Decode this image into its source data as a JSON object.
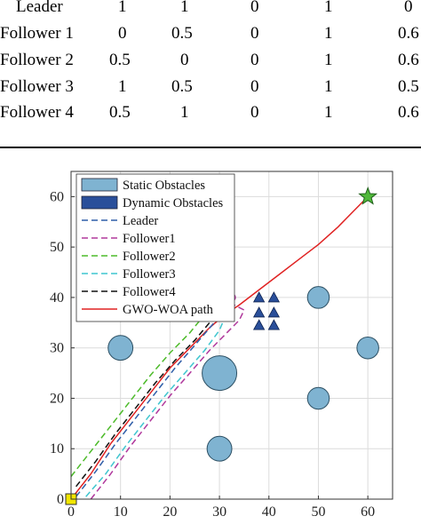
{
  "table": {
    "rows": [
      {
        "name": "Leader",
        "cells": [
          "1",
          "1",
          "0",
          "1",
          "0"
        ]
      },
      {
        "name": "Follower 1",
        "cells": [
          "0",
          "0.5",
          "0",
          "1",
          "0.6"
        ]
      },
      {
        "name": "Follower 2",
        "cells": [
          "0.5",
          "0",
          "0",
          "1",
          "0.6"
        ]
      },
      {
        "name": "Follower 3",
        "cells": [
          "1",
          "0.5",
          "0",
          "1",
          "0.5"
        ]
      },
      {
        "name": "Follower 4",
        "cells": [
          "0.5",
          "1",
          "0",
          "1",
          "0.6"
        ]
      }
    ]
  },
  "chart_data": {
    "type": "line",
    "xlim": [
      0,
      65
    ],
    "ylim": [
      0,
      65
    ],
    "xticks": [
      0,
      10,
      20,
      30,
      40,
      50,
      60
    ],
    "yticks": [
      0,
      10,
      20,
      30,
      40,
      50,
      60
    ],
    "grid": true,
    "legend_placement": "top-left",
    "legend": [
      {
        "label": "Static Obstacles",
        "kind": "patch",
        "color": "#7fb3d1"
      },
      {
        "label": "Dynamic Obstacles",
        "kind": "patch",
        "color": "#2a4f9a"
      },
      {
        "label": "Leader",
        "kind": "dash",
        "color": "#2f5ea8"
      },
      {
        "label": "Follower1",
        "kind": "dash",
        "color": "#b0389c"
      },
      {
        "label": "Follower2",
        "kind": "dash",
        "color": "#4dbb2a"
      },
      {
        "label": "Follower3",
        "kind": "dash",
        "color": "#3fc6cf"
      },
      {
        "label": "Follower4",
        "kind": "dash",
        "color": "#111111"
      },
      {
        "label": "GWO-WOA path",
        "kind": "solid",
        "color": "#e02222"
      }
    ],
    "static_obstacles": [
      {
        "cx": 10,
        "cy": 50,
        "r": 2.5
      },
      {
        "cx": 10,
        "cy": 30,
        "r": 2.5
      },
      {
        "cx": 30,
        "cy": 25,
        "r": 3.5
      },
      {
        "cx": 30,
        "cy": 10,
        "r": 2.5
      },
      {
        "cx": 50,
        "cy": 40,
        "r": 2.2
      },
      {
        "cx": 50,
        "cy": 20,
        "r": 2.2
      },
      {
        "cx": 60,
        "cy": 30,
        "r": 2.2
      }
    ],
    "dynamic_obstacles": [
      {
        "x": 38,
        "y": 40
      },
      {
        "x": 41,
        "y": 40
      },
      {
        "x": 38,
        "y": 37
      },
      {
        "x": 41,
        "y": 37
      },
      {
        "x": 38,
        "y": 34.5
      },
      {
        "x": 41,
        "y": 34.5
      }
    ],
    "start": {
      "x": 0,
      "y": 0
    },
    "goal": {
      "x": 60,
      "y": 60
    },
    "series": [
      {
        "name": "GWO-WOA path",
        "style": "solid",
        "color": "#e02222",
        "points": [
          [
            0,
            0
          ],
          [
            4,
            5
          ],
          [
            8,
            11
          ],
          [
            12,
            16
          ],
          [
            16,
            21
          ],
          [
            20,
            26
          ],
          [
            24,
            30
          ],
          [
            28,
            34
          ],
          [
            31,
            36.5
          ],
          [
            34,
            38.5
          ],
          [
            38,
            41.5
          ],
          [
            42,
            44.5
          ],
          [
            46,
            47.5
          ],
          [
            50,
            50.5
          ],
          [
            54,
            54
          ],
          [
            57,
            57
          ],
          [
            60,
            60
          ]
        ]
      },
      {
        "name": "Leader",
        "style": "dash",
        "color": "#2f5ea8",
        "points": [
          [
            1,
            0.5
          ],
          [
            5,
            5.5
          ],
          [
            9,
            11
          ],
          [
            13,
            16
          ],
          [
            17,
            21
          ],
          [
            21,
            26
          ],
          [
            25,
            30.5
          ],
          [
            28.5,
            34.5
          ],
          [
            30.5,
            37
          ]
        ]
      },
      {
        "name": "Follower1",
        "style": "dash",
        "color": "#b0389c",
        "points": [
          [
            4,
            0
          ],
          [
            8,
            5
          ],
          [
            12,
            10.5
          ],
          [
            16,
            15.5
          ],
          [
            20,
            20.5
          ],
          [
            24,
            25
          ],
          [
            28,
            29.5
          ],
          [
            31.5,
            33
          ],
          [
            34,
            35.5
          ],
          [
            35,
            37.5
          ],
          [
            33,
            38.5
          ],
          [
            32,
            38.5
          ]
        ]
      },
      {
        "name": "Follower2",
        "style": "dash",
        "color": "#4dbb2a",
        "points": [
          [
            0,
            4.5
          ],
          [
            4,
            9.5
          ],
          [
            8,
            14.5
          ],
          [
            12,
            19.5
          ],
          [
            16,
            24.5
          ],
          [
            20,
            29
          ],
          [
            24,
            33
          ],
          [
            26.5,
            36
          ],
          [
            28,
            38.5
          ]
        ]
      },
      {
        "name": "Follower3",
        "style": "dash",
        "color": "#3fc6cf",
        "points": [
          [
            3,
            0.5
          ],
          [
            7,
            5
          ],
          [
            11,
            10.5
          ],
          [
            15,
            15.5
          ],
          [
            19,
            20.5
          ],
          [
            23,
            25
          ],
          [
            27,
            29.5
          ],
          [
            30,
            33.5
          ],
          [
            31.5,
            37
          ]
        ]
      },
      {
        "name": "Follower4",
        "style": "dash",
        "color": "#111111",
        "points": [
          [
            1,
            2.5
          ],
          [
            5,
            7.5
          ],
          [
            9,
            13
          ],
          [
            13,
            18
          ],
          [
            17,
            23
          ],
          [
            21,
            27.5
          ],
          [
            25,
            31.5
          ],
          [
            28,
            35
          ],
          [
            29.5,
            38.5
          ],
          [
            29.5,
            40.5
          ]
        ]
      }
    ],
    "end_markers": [
      {
        "x": 29.8,
        "y": 43.5,
        "color": "#2f5ea8"
      },
      {
        "x": 31.5,
        "y": 42,
        "color": "#3fc6cf"
      },
      {
        "x": 29,
        "y": 42,
        "color": "#111111"
      },
      {
        "x": 27.5,
        "y": 40,
        "color": "#4dbb2a"
      },
      {
        "x": 32.5,
        "y": 40,
        "color": "#b0389c"
      }
    ]
  }
}
